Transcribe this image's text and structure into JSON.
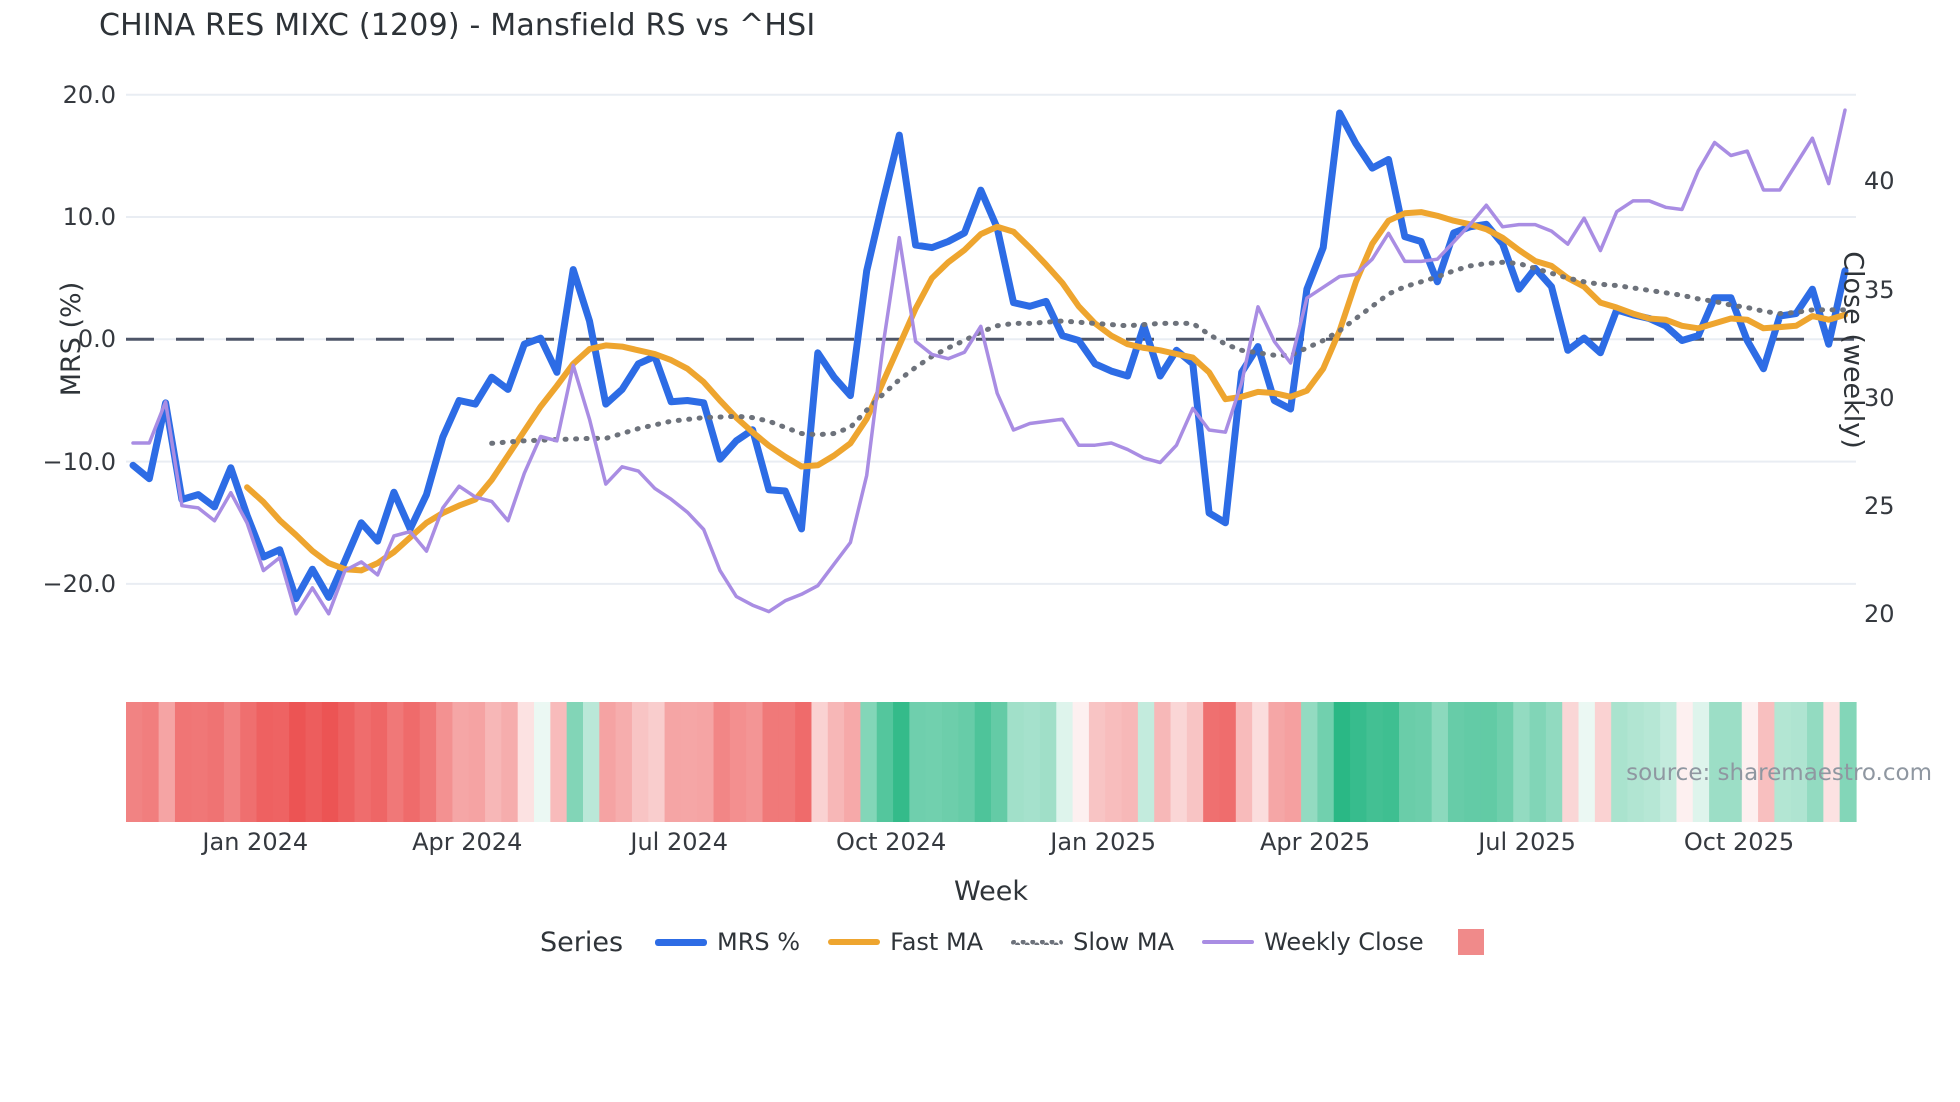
{
  "title": "CHINA RES MIXC (1209) - Mansfield RS vs ^HSI",
  "source_note": "source: sharemaestro.com",
  "axes": {
    "x": {
      "title": "Week",
      "tick_labels": [
        "Jan 2024",
        "Apr 2024",
        "Jul 2024",
        "Oct 2024",
        "Jan 2025",
        "Apr 2025",
        "Jul 2025",
        "Oct 2025"
      ],
      "tick_week_positions": [
        7.5,
        20.5,
        33.5,
        46.5,
        59.5,
        72.5,
        85.5,
        98.5
      ]
    },
    "y_left": {
      "title": "MRS (%)",
      "tick_labels": [
        "20.0",
        "10.0",
        "0.0",
        "−10.0",
        "−20.0"
      ],
      "tick_values": [
        20,
        10,
        0,
        -10,
        -20
      ]
    },
    "y_right": {
      "title": "Close (weekly)",
      "tick_labels": [
        "40",
        "35",
        "30",
        "25",
        "20"
      ],
      "tick_values": [
        40,
        35,
        30,
        25,
        20
      ]
    }
  },
  "legend": {
    "series_label": "Series",
    "items": [
      {
        "label": "MRS %",
        "color": "#2d6ce5",
        "dash": "solid",
        "thickness": 7
      },
      {
        "label": "Fast MA",
        "color": "#eea52f",
        "dash": "solid",
        "thickness": 6
      },
      {
        "label": "Slow MA",
        "color": "#6d727b",
        "dash": "dotted",
        "thickness": 5
      },
      {
        "label": "Weekly Close",
        "color": "#a98de3",
        "dash": "solid",
        "thickness": 4
      }
    ],
    "heatmap_swatch_color": "#f08a8a"
  },
  "chart_data": {
    "type": "line",
    "x_unit": "week_index",
    "n_points": 106,
    "grid": true,
    "zero_line": 0,
    "y_left_range": [
      -24,
      22
    ],
    "y_right_range": [
      18.5,
      44.5
    ],
    "series": [
      {
        "name": "MRS %",
        "axis": "left",
        "color": "#2d6ce5",
        "width": 7,
        "style": "solid",
        "values": [
          -10.3,
          -11.4,
          -5.2,
          -13.1,
          -12.7,
          -13.7,
          -10.5,
          -14.4,
          -17.8,
          -17.2,
          -21.2,
          -18.8,
          -21.1,
          -18.1,
          -15.0,
          -16.5,
          -12.5,
          -15.5,
          -12.7,
          -8.0,
          -5.0,
          -5.3,
          -3.1,
          -4.1,
          -0.4,
          0.1,
          -2.7,
          5.7,
          1.5,
          -5.3,
          -4.1,
          -2.0,
          -1.4,
          -5.1,
          -5.0,
          -5.2,
          -9.8,
          -8.3,
          -7.4,
          -12.3,
          -12.4,
          -15.5,
          -1.1,
          -3.1,
          -4.6,
          5.6,
          11.3,
          16.7,
          7.7,
          7.5,
          8.0,
          8.7,
          12.2,
          9.1,
          3.0,
          2.7,
          3.1,
          0.3,
          -0.1,
          -2.0,
          -2.6,
          -3.0,
          1.1,
          -3.0,
          -0.9,
          -2.0,
          -14.2,
          -15.0,
          -2.7,
          -0.6,
          -5.0,
          -5.7,
          4.1,
          7.5,
          18.5,
          16.0,
          14.0,
          14.7,
          8.4,
          8.0,
          4.7,
          8.7,
          9.2,
          9.4,
          7.8,
          4.1,
          5.8,
          4.3,
          -0.9,
          0.1,
          -1.1,
          2.4,
          2.0,
          1.7,
          1.1,
          -0.1,
          0.3,
          3.4,
          3.4,
          -0.1,
          -2.4,
          1.9,
          2.1,
          4.1,
          -0.4,
          5.6
        ]
      },
      {
        "name": "Fast MA",
        "axis": "left",
        "color": "#eea52f",
        "width": 6,
        "style": "solid",
        "values": [
          null,
          null,
          null,
          null,
          null,
          null,
          null,
          -12.1,
          -13.3,
          -14.8,
          -16.0,
          -17.3,
          -18.3,
          -18.8,
          -18.9,
          -18.3,
          -17.4,
          -16.2,
          -15.0,
          -14.2,
          -13.6,
          -13.1,
          -11.5,
          -9.5,
          -7.5,
          -5.5,
          -3.8,
          -2.0,
          -0.8,
          -0.5,
          -0.6,
          -0.9,
          -1.2,
          -1.7,
          -2.4,
          -3.5,
          -5.0,
          -6.4,
          -7.6,
          -8.7,
          -9.6,
          -10.4,
          -10.3,
          -9.5,
          -8.5,
          -6.5,
          -3.5,
          -0.5,
          2.5,
          5.0,
          6.3,
          7.3,
          8.6,
          9.2,
          8.8,
          7.5,
          6.1,
          4.6,
          2.7,
          1.3,
          0.3,
          -0.4,
          -0.7,
          -0.9,
          -1.2,
          -1.5,
          -2.7,
          -4.9,
          -4.7,
          -4.3,
          -4.4,
          -4.7,
          -4.2,
          -2.4,
          0.7,
          4.7,
          7.8,
          9.7,
          10.3,
          10.4,
          10.1,
          9.7,
          9.4,
          9.0,
          8.3,
          7.3,
          6.4,
          6.0,
          5.0,
          4.3,
          3.0,
          2.6,
          2.1,
          1.7,
          1.6,
          1.1,
          0.9,
          1.3,
          1.7,
          1.6,
          0.9,
          1.0,
          1.1,
          1.9,
          1.6,
          2.0
        ]
      },
      {
        "name": "Slow MA",
        "axis": "left",
        "color": "#6d727b",
        "width": 5,
        "style": "dotted",
        "values": [
          null,
          null,
          null,
          null,
          null,
          null,
          null,
          null,
          null,
          null,
          null,
          null,
          null,
          null,
          null,
          null,
          null,
          null,
          null,
          null,
          null,
          null,
          -8.5,
          -8.4,
          -8.3,
          -8.25,
          -8.2,
          -8.15,
          -8.1,
          -8.1,
          -7.7,
          -7.3,
          -7.0,
          -6.7,
          -6.55,
          -6.4,
          -6.35,
          -6.3,
          -6.4,
          -6.7,
          -7.2,
          -7.7,
          -7.8,
          -7.7,
          -7.2,
          -5.8,
          -4.5,
          -3.3,
          -2.3,
          -1.4,
          -0.7,
          -0.1,
          0.6,
          1.1,
          1.3,
          1.3,
          1.4,
          1.5,
          1.4,
          1.3,
          1.2,
          1.1,
          1.2,
          1.3,
          1.3,
          1.3,
          0.4,
          -0.4,
          -0.9,
          -1.1,
          -1.3,
          -1.3,
          -0.7,
          -0.1,
          0.7,
          1.7,
          2.7,
          3.7,
          4.3,
          4.7,
          5.1,
          5.6,
          6.0,
          6.2,
          6.3,
          6.2,
          5.8,
          5.4,
          5.0,
          4.7,
          4.5,
          4.4,
          4.2,
          4.0,
          3.8,
          3.6,
          3.3,
          3.1,
          2.8,
          2.6,
          2.3,
          2.1,
          2.2,
          2.4,
          2.4,
          2.4
        ]
      },
      {
        "name": "Weekly Close",
        "axis": "right",
        "color": "#a98de3",
        "width": 3.5,
        "style": "solid",
        "values": [
          27.9,
          27.9,
          29.8,
          25.0,
          24.9,
          24.3,
          25.6,
          24.2,
          22.0,
          22.6,
          20.0,
          21.2,
          20.0,
          22.0,
          22.4,
          21.8,
          23.6,
          23.8,
          22.9,
          24.9,
          25.9,
          25.4,
          25.2,
          24.3,
          26.5,
          28.2,
          28.0,
          31.5,
          29.0,
          26.0,
          26.8,
          26.6,
          25.8,
          25.3,
          24.7,
          23.9,
          22.0,
          20.8,
          20.4,
          20.1,
          20.6,
          20.9,
          21.3,
          22.3,
          23.3,
          26.4,
          32.4,
          37.4,
          32.6,
          32.0,
          31.8,
          32.1,
          33.3,
          30.2,
          28.5,
          28.8,
          28.9,
          29.0,
          27.8,
          27.8,
          27.9,
          27.6,
          27.2,
          27.0,
          27.8,
          29.5,
          28.5,
          28.4,
          30.7,
          34.2,
          32.6,
          31.6,
          34.6,
          35.1,
          35.6,
          35.7,
          36.4,
          37.6,
          36.3,
          36.3,
          36.4,
          37.2,
          38.0,
          38.9,
          37.9,
          38.0,
          38.0,
          37.7,
          37.1,
          38.3,
          36.8,
          38.6,
          39.1,
          39.1,
          38.8,
          38.7,
          40.5,
          41.8,
          41.2,
          41.4,
          39.6,
          39.6,
          40.8,
          42.0,
          39.9,
          43.3
        ]
      }
    ],
    "heatmap": {
      "based_on": "MRS %",
      "negative_color": "#ec5353",
      "positive_color": "#2ab885",
      "description": "weekly strip colored by MRS sign/magnitude"
    }
  }
}
